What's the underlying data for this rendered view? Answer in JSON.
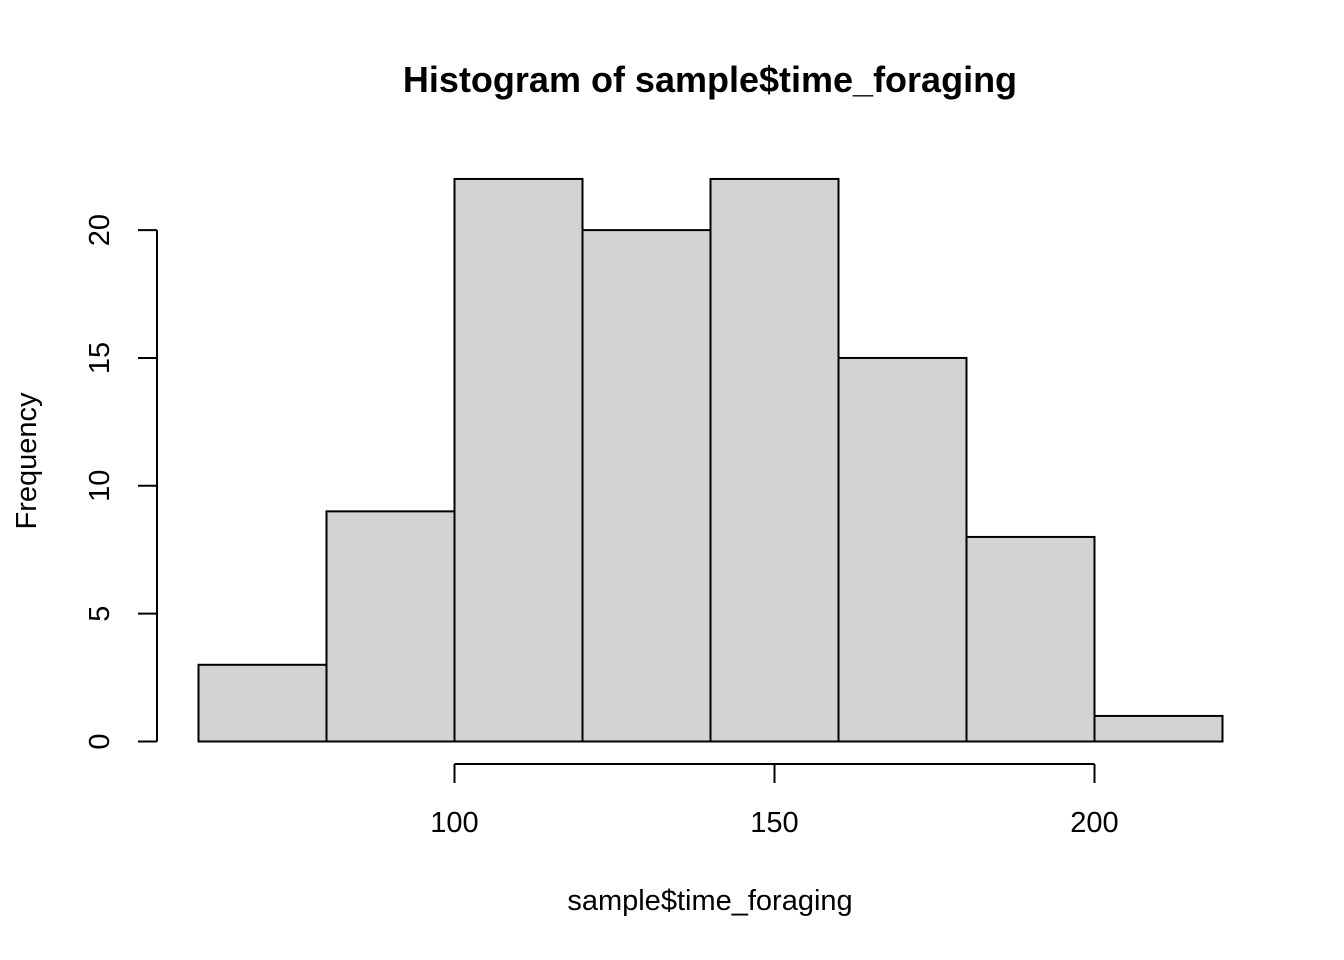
{
  "chart_data": {
    "type": "bar",
    "title": "Histogram of sample$time_foraging",
    "xlabel": "sample$time_foraging",
    "ylabel": "Frequency",
    "bins": [
      {
        "start": 60,
        "end": 80,
        "count": 3
      },
      {
        "start": 80,
        "end": 100,
        "count": 9
      },
      {
        "start": 100,
        "end": 120,
        "count": 22
      },
      {
        "start": 120,
        "end": 140,
        "count": 20
      },
      {
        "start": 140,
        "end": 160,
        "count": 22
      },
      {
        "start": 160,
        "end": 180,
        "count": 15
      },
      {
        "start": 180,
        "end": 200,
        "count": 8
      },
      {
        "start": 200,
        "end": 220,
        "count": 1
      }
    ],
    "x_ticks": [
      100,
      150,
      200
    ],
    "y_ticks": [
      0,
      5,
      10,
      15,
      20
    ],
    "xlim": [
      60,
      220
    ],
    "ylim": [
      0,
      22
    ],
    "grid": false,
    "colors": {
      "bar_fill": "#d3d3d3",
      "bar_stroke": "#000000"
    }
  }
}
